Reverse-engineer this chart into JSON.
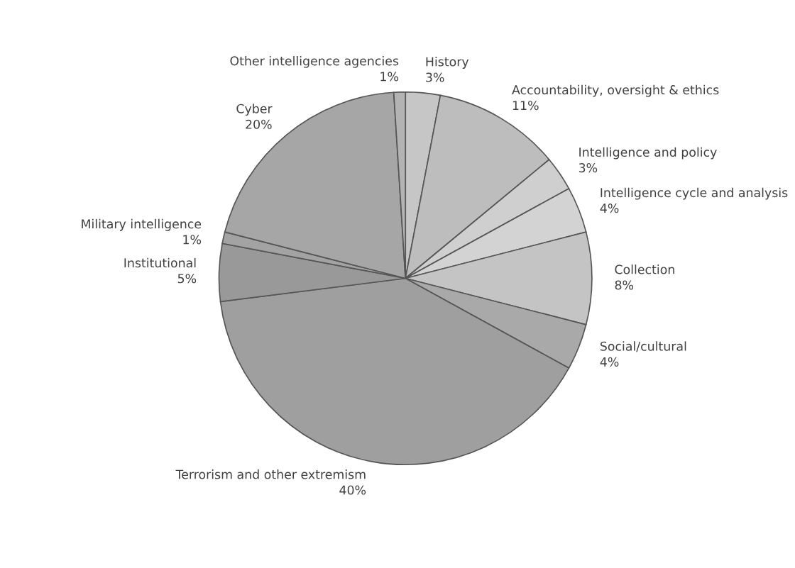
{
  "chart_data": {
    "type": "pie",
    "categories": [
      "History",
      "Accountability, oversight & ethics",
      "Intelligence and policy",
      "Intelligence cycle and analysis",
      "Collection",
      "Social/cultural",
      "Terrorism and other extremism",
      "Institutional",
      "Military intelligence",
      "Cyber",
      "Other intelligence agencies"
    ],
    "values": [
      3,
      11,
      3,
      4,
      8,
      4,
      40,
      5,
      1,
      20,
      1
    ],
    "value_labels": [
      "3%",
      "11%",
      "3%",
      "4%",
      "8%",
      "4%",
      "40%",
      "5%",
      "1%",
      "20%",
      "1%"
    ],
    "colors": [
      "#c6c6c6",
      "#bdbdbd",
      "#cfcfcf",
      "#d3d3d3",
      "#c4c4c4",
      "#a9a9a9",
      "#9f9f9f",
      "#999999",
      "#a3a3a3",
      "#a6a6a6",
      "#b3b3b3"
    ]
  }
}
